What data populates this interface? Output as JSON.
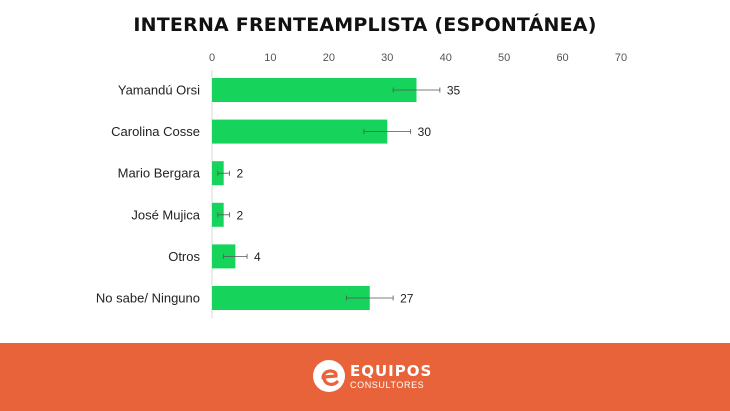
{
  "chart_data": {
    "type": "bar",
    "orientation": "horizontal",
    "title": "INTERNA FRENTEAMPLISTA (ESPONTÁNEA)",
    "categories": [
      "Yamandú Orsi",
      "Carolina Cosse",
      "Mario Bergara",
      "José Mujica",
      "Otros",
      "No sabe/ Ninguno"
    ],
    "values": [
      35,
      30,
      2,
      2,
      4,
      27
    ],
    "error_bars": [
      {
        "low": 31,
        "high": 39
      },
      {
        "low": 26,
        "high": 34
      },
      {
        "low": 1,
        "high": 3
      },
      {
        "low": 1,
        "high": 3
      },
      {
        "low": 2,
        "high": 6
      },
      {
        "low": 23,
        "high": 31
      }
    ],
    "xlim": [
      0,
      70
    ],
    "xticks": [
      0,
      10,
      20,
      30,
      40,
      50,
      60,
      70
    ],
    "xaxis_position": "top",
    "grid": false,
    "bar_color": "#16d45b"
  },
  "footer": {
    "logo_title": "EQUIPOS",
    "logo_subtitle": "CONSULTORES",
    "background_color": "#e8633a"
  }
}
